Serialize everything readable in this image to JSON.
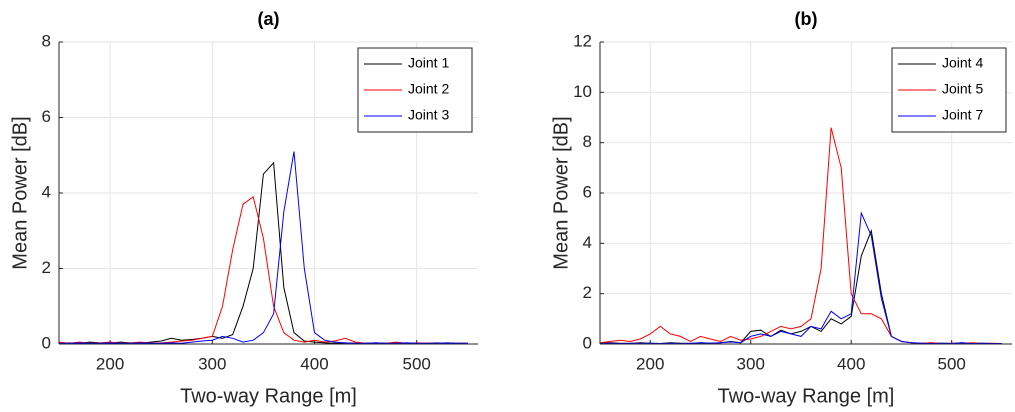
{
  "chart_data": [
    {
      "type": "line",
      "title": "(a)",
      "x_label": "Two-way Range [m]",
      "y_label": "Mean Power [dB]",
      "x": [
        150,
        160,
        170,
        180,
        190,
        200,
        210,
        220,
        230,
        240,
        250,
        260,
        270,
        280,
        290,
        300,
        310,
        320,
        330,
        340,
        350,
        360,
        370,
        380,
        390,
        400,
        410,
        420,
        430,
        440,
        450,
        460,
        470,
        480,
        490,
        500,
        510,
        520,
        530,
        540,
        550
      ],
      "series": [
        {
          "name": "Joint 1",
          "color": "#000000",
          "values": [
            0.02,
            0.03,
            0.02,
            0.05,
            0.03,
            0.02,
            0.05,
            0.03,
            0.02,
            0.05,
            0.08,
            0.15,
            0.1,
            0.12,
            0.15,
            0.2,
            0.15,
            0.25,
            1.0,
            2.0,
            4.5,
            4.8,
            1.5,
            0.3,
            0.08,
            0.05,
            0.03,
            0.02,
            0.03,
            0.02,
            0.02,
            0.03,
            0.02,
            0.02,
            0.03,
            0.02,
            0.02,
            0.03,
            0.02,
            0.02,
            0.02
          ]
        },
        {
          "name": "Joint 2",
          "color": "#ff0000",
          "values": [
            0.05,
            0.02,
            0.05,
            0.02,
            0.03,
            0.05,
            0.02,
            0.03,
            0.05,
            0.02,
            0.03,
            0.05,
            0.08,
            0.1,
            0.15,
            0.2,
            1.0,
            2.5,
            3.7,
            3.9,
            2.8,
            1.0,
            0.3,
            0.1,
            0.05,
            0.1,
            0.05,
            0.08,
            0.15,
            0.05,
            0.02,
            0.03,
            0.02,
            0.05,
            0.02,
            0.03,
            0.02,
            0.02,
            0.03,
            0.02,
            0.02
          ]
        },
        {
          "name": "Joint 3",
          "color": "#0000ff",
          "values": [
            0.02,
            0.02,
            0.03,
            0.02,
            0.02,
            0.03,
            0.02,
            0.02,
            0.03,
            0.02,
            0.02,
            0.03,
            0.02,
            0.05,
            0.08,
            0.1,
            0.2,
            0.15,
            0.05,
            0.1,
            0.3,
            0.8,
            3.5,
            5.1,
            2.0,
            0.3,
            0.1,
            0.05,
            0.03,
            0.02,
            0.02,
            0.03,
            0.02,
            0.02,
            0.03,
            0.02,
            0.02,
            0.02,
            0.03,
            0.02,
            0.02
          ]
        }
      ],
      "xlim": [
        150,
        560
      ],
      "ylim": [
        0,
        8
      ],
      "xticks": [
        200,
        300,
        400,
        500
      ],
      "yticks": [
        0,
        2,
        4,
        6,
        8
      ],
      "grid": true,
      "legend": "upper-right"
    },
    {
      "type": "line",
      "title": "(b)",
      "x_label": "Two-way Range [m]",
      "y_label": "Mean Power [dB]",
      "x": [
        150,
        160,
        170,
        180,
        190,
        200,
        210,
        220,
        230,
        240,
        250,
        260,
        270,
        280,
        290,
        300,
        310,
        320,
        330,
        340,
        350,
        360,
        370,
        380,
        390,
        400,
        410,
        420,
        430,
        440,
        450,
        460,
        470,
        480,
        490,
        500,
        510,
        520,
        530,
        540,
        550
      ],
      "series": [
        {
          "name": "Joint 4",
          "color": "#000000",
          "values": [
            0.03,
            0.05,
            0.03,
            0.02,
            0.05,
            0.03,
            0.02,
            0.05,
            0.03,
            0.02,
            0.05,
            0.03,
            0.05,
            0.1,
            0.05,
            0.5,
            0.55,
            0.3,
            0.55,
            0.4,
            0.5,
            0.7,
            0.5,
            1.0,
            0.8,
            1.1,
            3.5,
            4.5,
            2.0,
            0.3,
            0.1,
            0.05,
            0.03,
            0.02,
            0.03,
            0.02,
            0.05,
            0.02,
            0.03,
            0.02,
            0.02
          ]
        },
        {
          "name": "Joint 5",
          "color": "#ff0000",
          "values": [
            0.05,
            0.1,
            0.15,
            0.1,
            0.2,
            0.4,
            0.7,
            0.4,
            0.3,
            0.1,
            0.3,
            0.2,
            0.1,
            0.3,
            0.15,
            0.2,
            0.3,
            0.5,
            0.7,
            0.6,
            0.7,
            1.0,
            3.0,
            8.6,
            7.0,
            2.0,
            1.2,
            1.2,
            1.0,
            0.3,
            0.1,
            0.05,
            0.03,
            0.05,
            0.02,
            0.03,
            0.02,
            0.05,
            0.02,
            0.03,
            0.02
          ]
        },
        {
          "name": "Joint 7",
          "color": "#0000ff",
          "values": [
            0.02,
            0.03,
            0.02,
            0.03,
            0.02,
            0.03,
            0.02,
            0.03,
            0.02,
            0.03,
            0.05,
            0.03,
            0.05,
            0.08,
            0.05,
            0.3,
            0.4,
            0.3,
            0.5,
            0.4,
            0.3,
            0.7,
            0.6,
            1.3,
            1.0,
            1.2,
            5.2,
            4.3,
            1.8,
            0.3,
            0.1,
            0.05,
            0.03,
            0.02,
            0.03,
            0.02,
            0.05,
            0.02,
            0.03,
            0.02,
            0.02
          ]
        }
      ],
      "xlim": [
        150,
        560
      ],
      "ylim": [
        0,
        12
      ],
      "xticks": [
        200,
        300,
        400,
        500
      ],
      "yticks": [
        0,
        2,
        4,
        6,
        8,
        10,
        12
      ],
      "grid": true,
      "legend": "upper-right"
    }
  ]
}
